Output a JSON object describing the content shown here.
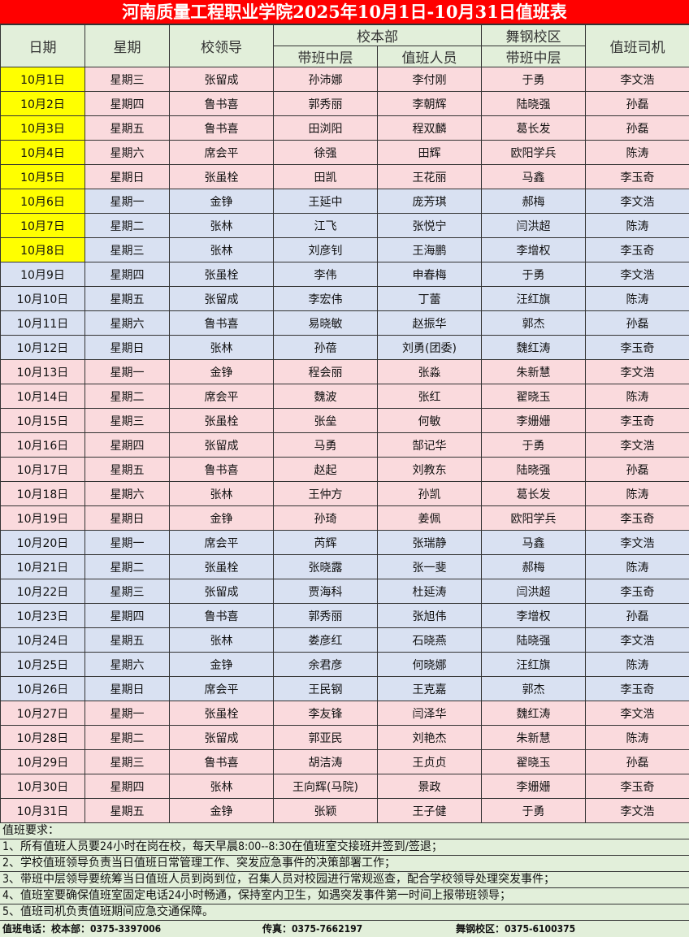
{
  "title": "河南质量工程职业学院2025年10月1日-10月31日值班表",
  "headers": {
    "date": "日期",
    "weekday": "星期",
    "leader": "校领导",
    "main_campus": "校本部",
    "wugang_campus": "舞钢校区",
    "driver": "值班司机",
    "main_mid": "带班中层",
    "main_staff": "值班人员",
    "wugang_mid": "带班中层"
  },
  "colors": {
    "title_bg": "#ff0000",
    "header_bg": "#e2efda",
    "pink": "#fadadd",
    "blue": "#d9e1f2",
    "highlight": "#ffff00"
  },
  "rows": [
    {
      "date": "10月1日",
      "weekday": "星期三",
      "leader": "张留成",
      "main_mid": "孙沛娜",
      "main_staff": "李付刚",
      "wugang_mid": "于勇",
      "driver": "李文浩",
      "color": "pink",
      "highlight": true
    },
    {
      "date": "10月2日",
      "weekday": "星期四",
      "leader": "鲁书喜",
      "main_mid": "郭秀丽",
      "main_staff": "李朝辉",
      "wugang_mid": "陆晓强",
      "driver": "孙磊",
      "color": "pink",
      "highlight": true
    },
    {
      "date": "10月3日",
      "weekday": "星期五",
      "leader": "鲁书喜",
      "main_mid": "田浏阳",
      "main_staff": "程双麟",
      "wugang_mid": "葛长发",
      "driver": "孙磊",
      "color": "pink",
      "highlight": true
    },
    {
      "date": "10月4日",
      "weekday": "星期六",
      "leader": "席会平",
      "main_mid": "徐强",
      "main_staff": "田辉",
      "wugang_mid": "欧阳学兵",
      "driver": "陈涛",
      "color": "pink",
      "highlight": true
    },
    {
      "date": "10月5日",
      "weekday": "星期日",
      "leader": "张虽栓",
      "main_mid": "田凯",
      "main_staff": "王花丽",
      "wugang_mid": "马鑫",
      "driver": "李玉奇",
      "color": "pink",
      "highlight": true
    },
    {
      "date": "10月6日",
      "weekday": "星期一",
      "leader": "金铮",
      "main_mid": "王延中",
      "main_staff": "庞芳琪",
      "wugang_mid": "郝梅",
      "driver": "李文浩",
      "color": "blue",
      "highlight": true
    },
    {
      "date": "10月7日",
      "weekday": "星期二",
      "leader": "张林",
      "main_mid": "江飞",
      "main_staff": "张悦宁",
      "wugang_mid": "闫洪超",
      "driver": "陈涛",
      "color": "blue",
      "highlight": true
    },
    {
      "date": "10月8日",
      "weekday": "星期三",
      "leader": "张林",
      "main_mid": "刘彦钊",
      "main_staff": "王海鹏",
      "wugang_mid": "李增权",
      "driver": "李玉奇",
      "color": "blue",
      "highlight": true
    },
    {
      "date": "10月9日",
      "weekday": "星期四",
      "leader": "张虽栓",
      "main_mid": "李伟",
      "main_staff": "申春梅",
      "wugang_mid": "于勇",
      "driver": "李文浩",
      "color": "blue",
      "highlight": false
    },
    {
      "date": "10月10日",
      "weekday": "星期五",
      "leader": "张留成",
      "main_mid": "李宏伟",
      "main_staff": "丁蕾",
      "wugang_mid": "汪红旗",
      "driver": "陈涛",
      "color": "blue",
      "highlight": false
    },
    {
      "date": "10月11日",
      "weekday": "星期六",
      "leader": "鲁书喜",
      "main_mid": "易晓敏",
      "main_staff": "赵振华",
      "wugang_mid": "郭杰",
      "driver": "孙磊",
      "color": "blue",
      "highlight": false
    },
    {
      "date": "10月12日",
      "weekday": "星期日",
      "leader": "张林",
      "main_mid": "孙蓓",
      "main_staff": "刘勇(团委)",
      "wugang_mid": "魏红涛",
      "driver": "李玉奇",
      "color": "blue",
      "highlight": false
    },
    {
      "date": "10月13日",
      "weekday": "星期一",
      "leader": "金铮",
      "main_mid": "程会丽",
      "main_staff": "张淼",
      "wugang_mid": "朱新慧",
      "driver": "李文浩",
      "color": "pink",
      "highlight": false
    },
    {
      "date": "10月14日",
      "weekday": "星期二",
      "leader": "席会平",
      "main_mid": "魏波",
      "main_staff": "张红",
      "wugang_mid": "翟晓玉",
      "driver": "陈涛",
      "color": "pink",
      "highlight": false
    },
    {
      "date": "10月15日",
      "weekday": "星期三",
      "leader": "张虽栓",
      "main_mid": "张垒",
      "main_staff": "何敏",
      "wugang_mid": "李姗姗",
      "driver": "李玉奇",
      "color": "pink",
      "highlight": false
    },
    {
      "date": "10月16日",
      "weekday": "星期四",
      "leader": "张留成",
      "main_mid": "马勇",
      "main_staff": "郜记华",
      "wugang_mid": "于勇",
      "driver": "李文浩",
      "color": "pink",
      "highlight": false
    },
    {
      "date": "10月17日",
      "weekday": "星期五",
      "leader": "鲁书喜",
      "main_mid": "赵起",
      "main_staff": "刘教东",
      "wugang_mid": "陆晓强",
      "driver": "孙磊",
      "color": "pink",
      "highlight": false
    },
    {
      "date": "10月18日",
      "weekday": "星期六",
      "leader": "张林",
      "main_mid": "王仲方",
      "main_staff": "孙凯",
      "wugang_mid": "葛长发",
      "driver": "陈涛",
      "color": "pink",
      "highlight": false
    },
    {
      "date": "10月19日",
      "weekday": "星期日",
      "leader": "金铮",
      "main_mid": "孙琦",
      "main_staff": "姜佩",
      "wugang_mid": "欧阳学兵",
      "driver": "李玉奇",
      "color": "pink",
      "highlight": false
    },
    {
      "date": "10月20日",
      "weekday": "星期一",
      "leader": "席会平",
      "main_mid": "芮辉",
      "main_staff": "张瑞静",
      "wugang_mid": "马鑫",
      "driver": "李文浩",
      "color": "blue",
      "highlight": false
    },
    {
      "date": "10月21日",
      "weekday": "星期二",
      "leader": "张虽栓",
      "main_mid": "张晓露",
      "main_staff": "张一斐",
      "wugang_mid": "郝梅",
      "driver": "陈涛",
      "color": "blue",
      "highlight": false
    },
    {
      "date": "10月22日",
      "weekday": "星期三",
      "leader": "张留成",
      "main_mid": "贾海科",
      "main_staff": "杜延涛",
      "wugang_mid": "闫洪超",
      "driver": "李玉奇",
      "color": "blue",
      "highlight": false
    },
    {
      "date": "10月23日",
      "weekday": "星期四",
      "leader": "鲁书喜",
      "main_mid": "郭秀丽",
      "main_staff": "张旭伟",
      "wugang_mid": "李增权",
      "driver": "孙磊",
      "color": "blue",
      "highlight": false
    },
    {
      "date": "10月24日",
      "weekday": "星期五",
      "leader": "张林",
      "main_mid": "娄彦红",
      "main_staff": "石晓燕",
      "wugang_mid": "陆晓强",
      "driver": "李文浩",
      "color": "blue",
      "highlight": false
    },
    {
      "date": "10月25日",
      "weekday": "星期六",
      "leader": "金铮",
      "main_mid": "余君彦",
      "main_staff": "何晓娜",
      "wugang_mid": "汪红旗",
      "driver": "陈涛",
      "color": "blue",
      "highlight": false
    },
    {
      "date": "10月26日",
      "weekday": "星期日",
      "leader": "席会平",
      "main_mid": "王民钢",
      "main_staff": "王克嘉",
      "wugang_mid": "郭杰",
      "driver": "李玉奇",
      "color": "blue",
      "highlight": false
    },
    {
      "date": "10月27日",
      "weekday": "星期一",
      "leader": "张虽栓",
      "main_mid": "李友锋",
      "main_staff": "闫泽华",
      "wugang_mid": "魏红涛",
      "driver": "李文浩",
      "color": "pink",
      "highlight": false
    },
    {
      "date": "10月28日",
      "weekday": "星期二",
      "leader": "张留成",
      "main_mid": "郭亚民",
      "main_staff": "刘艳杰",
      "wugang_mid": "朱新慧",
      "driver": "陈涛",
      "color": "pink",
      "highlight": false
    },
    {
      "date": "10月29日",
      "weekday": "星期三",
      "leader": "鲁书喜",
      "main_mid": "胡洁涛",
      "main_staff": "王贞贞",
      "wugang_mid": "翟晓玉",
      "driver": "孙磊",
      "color": "pink",
      "highlight": false
    },
    {
      "date": "10月30日",
      "weekday": "星期四",
      "leader": "张林",
      "main_mid": "王向辉(马院)",
      "main_staff": "景政",
      "wugang_mid": "李姗姗",
      "driver": "李玉奇",
      "color": "pink",
      "highlight": false
    },
    {
      "date": "10月31日",
      "weekday": "星期五",
      "leader": "金铮",
      "main_mid": "张颖",
      "main_staff": "王子健",
      "wugang_mid": "于勇",
      "driver": "李文浩",
      "color": "pink",
      "highlight": false
    }
  ],
  "notes": {
    "heading": "值班要求：",
    "items": [
      "1、所有值班人员要24小时在岗在校，每天早晨8:00--8:30在值班室交接班并签到/签退；",
      "2、学校值班领导负责当日值班日常管理工作、突发应急事件的决策部署工作；",
      "3、带班中层领导要统筹当日值班人员到岗到位，召集人员对校园进行常规巡查，配合学校领导处理突发事件；",
      "4、值班室要确保值班室固定电话24小时畅通，保持室内卫生，如遇突发事件第一时间上报带班领导；",
      "5、值班司机负责值班期间应急交通保障。"
    ]
  },
  "phones": {
    "main": "值班电话：校本部：0375-3397006",
    "fax": "传真：0375-7662197",
    "wugang": "舞钢校区：0375-6100375"
  }
}
